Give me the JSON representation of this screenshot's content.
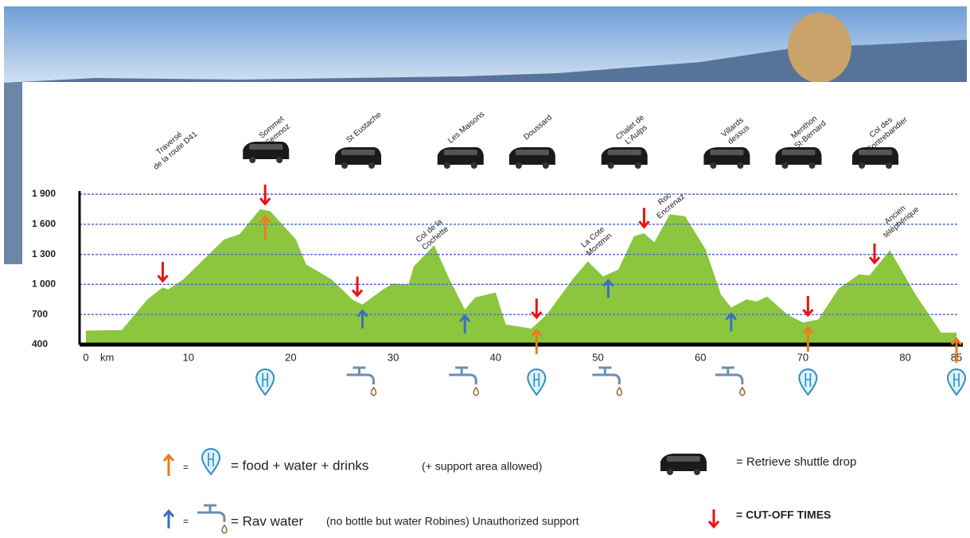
{
  "chart_data": {
    "type": "area",
    "x_unit": "km",
    "x": [
      0,
      3.5,
      6,
      7.5,
      8,
      9.5,
      12,
      13.5,
      15,
      17,
      18,
      20.5,
      21.5,
      24,
      26,
      27,
      29,
      30,
      31.5,
      32,
      34,
      35.5,
      37,
      38,
      40,
      41,
      43.5,
      45,
      47.5,
      49,
      50.5,
      52,
      53.5,
      54.5,
      55.5,
      57,
      58.5,
      60.5,
      62,
      63,
      64.5,
      65.5,
      66.5,
      68.5,
      70,
      71.5,
      73.5,
      75.5,
      76.5,
      78.5,
      81,
      83.5,
      85
    ],
    "values": [
      540,
      545,
      850,
      970,
      950,
      1050,
      1300,
      1450,
      1500,
      1750,
      1730,
      1450,
      1200,
      1050,
      850,
      800,
      950,
      1010,
      1000,
      1180,
      1390,
      1050,
      750,
      870,
      920,
      600,
      560,
      700,
      1050,
      1230,
      1080,
      1150,
      1480,
      1510,
      1420,
      1700,
      1680,
      1350,
      900,
      770,
      850,
      830,
      880,
      700,
      620,
      650,
      960,
      1100,
      1090,
      1340,
      900,
      520,
      520
    ],
    "color": "#8cc63f",
    "xlim": [
      0,
      85
    ],
    "xticks": [
      0,
      10,
      20,
      30,
      40,
      50,
      60,
      70,
      80,
      85
    ],
    "ylim": [
      400,
      1900
    ],
    "yticks": [
      {
        "value": 400,
        "label": "400"
      },
      {
        "value": 700,
        "label": "700"
      },
      {
        "value": 1000,
        "label": "1 000"
      },
      {
        "value": 1300,
        "label": "1 300"
      },
      {
        "value": 1600,
        "label": "1 600"
      },
      {
        "value": 1900,
        "label": "1 900"
      }
    ],
    "grid": true,
    "places": [
      {
        "lines": [
          "Traversé",
          "de la route D41"
        ],
        "x": 7.5,
        "shuttle": false
      },
      {
        "lines": [
          "Sommet",
          "Semnoz"
        ],
        "x": 17.5,
        "shuttle": true
      },
      {
        "lines": [
          "St Eustache"
        ],
        "x": 26.5,
        "shuttle": true
      },
      {
        "lines": [
          "Les Maisons"
        ],
        "x": 36.5,
        "shuttle": true
      },
      {
        "lines": [
          "Doussard"
        ],
        "x": 43.5,
        "shuttle": true
      },
      {
        "lines": [
          "Chalet de",
          "L'Aulps"
        ],
        "x": 52.5,
        "shuttle": true
      },
      {
        "lines": [
          "Villards",
          "dessus"
        ],
        "x": 62.5,
        "shuttle": true
      },
      {
        "lines": [
          "Menthon",
          "St-Bernard"
        ],
        "x": 69.5,
        "shuttle": true
      },
      {
        "lines": [
          "Col des",
          "Contrebandier"
        ],
        "x": 77,
        "shuttle": true
      }
    ],
    "annotations": [
      {
        "lines": [
          "Col de la",
          "Cochette"
        ],
        "x": 33.5
      },
      {
        "lines": [
          "La Cote",
          "Montmin"
        ],
        "x": 49.5
      },
      {
        "lines": [
          "Roc",
          "Encrenaz"
        ],
        "x": 56.5
      },
      {
        "lines": [
          "Ancien",
          "téléphérique"
        ],
        "x": 79
      }
    ],
    "cutoffs": [
      7.5,
      17.5,
      26.5,
      44,
      54.5,
      70.5,
      77
    ],
    "food": [
      17.5,
      44,
      70.5,
      85
    ],
    "water": [
      27,
      37,
      51,
      63
    ],
    "legend": {
      "food": [
        "=",
        "= food + water + drinks",
        "(+ support area allowed)"
      ],
      "water": [
        "=",
        "= Rav water",
        "(no bottle but water Robines) Unauthorized support"
      ],
      "shuttle": "= Retrieve shuttle drop",
      "cutoff": "= CUT-OFF TIMES"
    }
  }
}
